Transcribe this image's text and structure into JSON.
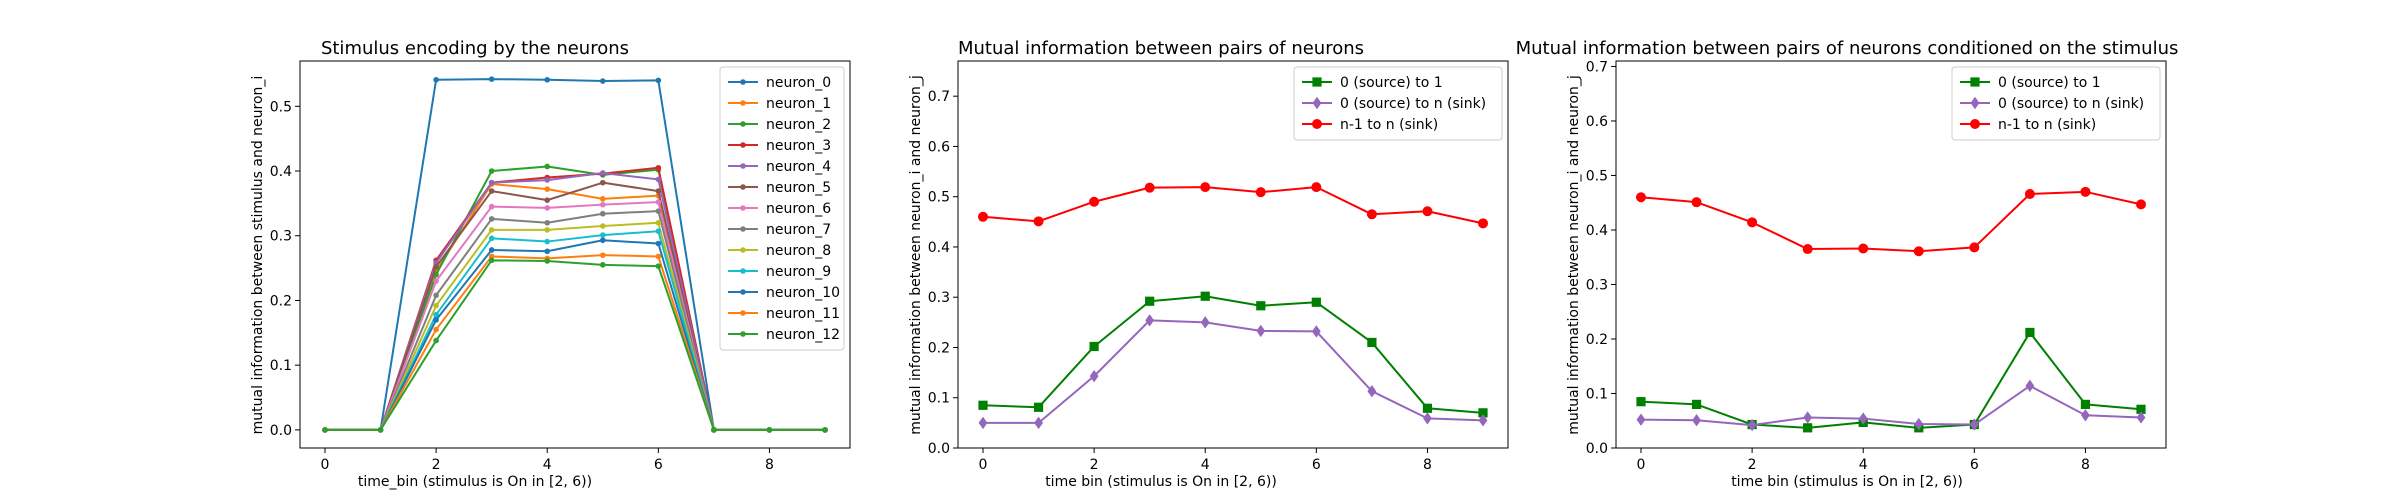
{
  "chart_data": [
    {
      "type": "line",
      "title": "Stimulus encoding by the neurons",
      "xlabel": "time_bin (stimulus is On in [2, 6))",
      "ylabel": "mutual information between stimulus and neuron_i",
      "xlim": [
        -0.45,
        9.45
      ],
      "ylim": [
        -0.028,
        0.57
      ],
      "xticks": [
        0,
        2,
        4,
        6,
        8
      ],
      "yticks": [
        0.0,
        0.1,
        0.2,
        0.3,
        0.4,
        0.5
      ],
      "ytick_labels": [
        "0.0",
        "0.1",
        "0.2",
        "0.3",
        "0.4",
        "0.5"
      ],
      "legend_position": "upper-right",
      "x": [
        0,
        1,
        2,
        3,
        4,
        5,
        6,
        7,
        8,
        9
      ],
      "series": [
        {
          "name": "neuron_0",
          "color": "#1f77b4",
          "marker": "dot",
          "values": [
            0,
            0,
            0.541,
            0.542,
            0.541,
            0.539,
            0.54,
            0,
            0,
            0
          ]
        },
        {
          "name": "neuron_1",
          "color": "#ff7f0e",
          "marker": "dot",
          "values": [
            0,
            0,
            0.245,
            0.38,
            0.372,
            0.357,
            0.362,
            0,
            0,
            0
          ]
        },
        {
          "name": "neuron_2",
          "color": "#2ca02c",
          "marker": "dot",
          "values": [
            0,
            0,
            0.24,
            0.4,
            0.407,
            0.394,
            0.402,
            0,
            0,
            0
          ]
        },
        {
          "name": "neuron_3",
          "color": "#d62728",
          "marker": "dot",
          "values": [
            0,
            0,
            0.262,
            0.382,
            0.39,
            0.396,
            0.405,
            0,
            0,
            0
          ]
        },
        {
          "name": "neuron_4",
          "color": "#9467bd",
          "marker": "dot",
          "values": [
            0,
            0,
            0.258,
            0.382,
            0.386,
            0.397,
            0.387,
            0,
            0,
            0
          ]
        },
        {
          "name": "neuron_5",
          "color": "#8c564b",
          "marker": "dot",
          "values": [
            0,
            0,
            0.252,
            0.369,
            0.355,
            0.382,
            0.369,
            0,
            0,
            0
          ]
        },
        {
          "name": "neuron_6",
          "color": "#e377c2",
          "marker": "dot",
          "values": [
            0,
            0,
            0.23,
            0.345,
            0.343,
            0.348,
            0.352,
            0,
            0,
            0
          ]
        },
        {
          "name": "neuron_7",
          "color": "#7f7f7f",
          "marker": "dot",
          "values": [
            0,
            0,
            0.208,
            0.326,
            0.32,
            0.334,
            0.338,
            0,
            0,
            0
          ]
        },
        {
          "name": "neuron_8",
          "color": "#bcbd22",
          "marker": "dot",
          "values": [
            0,
            0,
            0.192,
            0.309,
            0.309,
            0.315,
            0.32,
            0,
            0,
            0
          ]
        },
        {
          "name": "neuron_9",
          "color": "#17becf",
          "marker": "dot",
          "values": [
            0,
            0,
            0.178,
            0.296,
            0.291,
            0.301,
            0.307,
            0,
            0,
            0
          ]
        },
        {
          "name": "neuron_10",
          "color": "#1f77b4",
          "marker": "dot",
          "values": [
            0,
            0,
            0.17,
            0.278,
            0.276,
            0.293,
            0.288,
            0,
            0,
            0
          ]
        },
        {
          "name": "neuron_11",
          "color": "#ff7f0e",
          "marker": "dot",
          "values": [
            0,
            0,
            0.155,
            0.268,
            0.265,
            0.27,
            0.268,
            0,
            0,
            0
          ]
        },
        {
          "name": "neuron_12",
          "color": "#2ca02c",
          "marker": "dot",
          "values": [
            0,
            0,
            0.138,
            0.262,
            0.261,
            0.255,
            0.253,
            0,
            0,
            0
          ]
        }
      ]
    },
    {
      "type": "line",
      "title": "Mutual information between pairs of neurons",
      "xlabel": "time bin (stimulus is On in [2, 6))",
      "ylabel": "mutual information between neuron_i and neuron_j",
      "xlim": [
        -0.45,
        9.45
      ],
      "ylim": [
        0.0,
        0.77
      ],
      "xticks": [
        0,
        2,
        4,
        6,
        8
      ],
      "yticks": [
        0.0,
        0.1,
        0.2,
        0.3,
        0.4,
        0.5,
        0.6,
        0.7
      ],
      "ytick_labels": [
        "0.0",
        "0.1",
        "0.2",
        "0.3",
        "0.4",
        "0.5",
        "0.6",
        "0.7"
      ],
      "legend_position": "upper-right",
      "x": [
        0,
        1,
        2,
        3,
        4,
        5,
        6,
        7,
        8,
        9
      ],
      "series": [
        {
          "name": "0 (source) to 1",
          "color": "#008000",
          "marker": "square",
          "values": [
            0.085,
            0.081,
            0.202,
            0.292,
            0.302,
            0.283,
            0.29,
            0.21,
            0.079,
            0.07
          ]
        },
        {
          "name": "0 (source) to n (sink)",
          "color": "#9467bd",
          "marker": "diamond",
          "values": [
            0.05,
            0.05,
            0.143,
            0.254,
            0.25,
            0.233,
            0.232,
            0.113,
            0.059,
            0.055
          ]
        },
        {
          "name": "n-1 to n (sink)",
          "color": "#ff0000",
          "marker": "circle",
          "values": [
            0.46,
            0.451,
            0.49,
            0.518,
            0.519,
            0.509,
            0.519,
            0.465,
            0.471,
            0.447
          ]
        }
      ]
    },
    {
      "type": "line",
      "title": "Mutual information between pairs of neurons conditioned on the stimulus",
      "xlabel": "time bin (stimulus is On in [2, 6))",
      "ylabel": "mutual information between neuron_i and neuron_j",
      "xlim": [
        -0.45,
        9.45
      ],
      "ylim": [
        0.0,
        0.71
      ],
      "xticks": [
        0,
        2,
        4,
        6,
        8
      ],
      "yticks": [
        0.0,
        0.1,
        0.2,
        0.3,
        0.4,
        0.5,
        0.6,
        0.7
      ],
      "ytick_labels": [
        "0.0",
        "0.1",
        "0.2",
        "0.3",
        "0.4",
        "0.5",
        "0.6",
        "0.7"
      ],
      "legend_position": "upper-right",
      "x": [
        0,
        1,
        2,
        3,
        4,
        5,
        6,
        7,
        8,
        9
      ],
      "series": [
        {
          "name": "0 (source) to 1",
          "color": "#008000",
          "marker": "square",
          "values": [
            0.085,
            0.08,
            0.043,
            0.037,
            0.047,
            0.037,
            0.043,
            0.212,
            0.08,
            0.071
          ]
        },
        {
          "name": "0 (source) to n (sink)",
          "color": "#9467bd",
          "marker": "diamond",
          "values": [
            0.052,
            0.051,
            0.042,
            0.056,
            0.054,
            0.044,
            0.043,
            0.114,
            0.06,
            0.056
          ]
        },
        {
          "name": "n-1 to n (sink)",
          "color": "#ff0000",
          "marker": "circle",
          "values": [
            0.46,
            0.451,
            0.414,
            0.365,
            0.366,
            0.361,
            0.368,
            0.466,
            0.47,
            0.447
          ]
        }
      ]
    }
  ]
}
